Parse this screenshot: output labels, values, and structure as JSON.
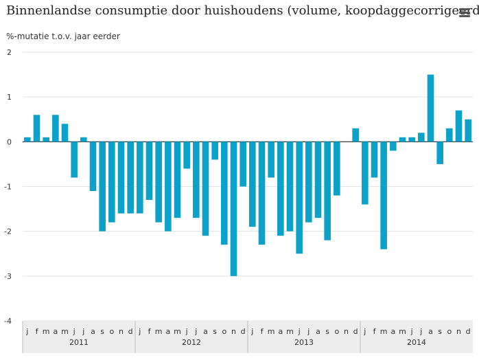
{
  "title": "Binnenlandse consumptie door huishoudens (volume, koopdaggecorrigeerd)",
  "menu": {
    "icon": "hamburger-menu-icon"
  },
  "chart_data": {
    "type": "bar",
    "title": "Binnenlandse consumptie door huishoudens (volume, koopdaggecorrigeerd)",
    "ylabel": "%-mutatie t.o.v. jaar eerder",
    "xlabel": "",
    "ylim": [
      -4,
      2
    ],
    "yticks": [
      -4,
      -3,
      -2,
      -1,
      0,
      1,
      2
    ],
    "grid": true,
    "legend": "none",
    "bar_color": "#0ca1c8",
    "month_labels": [
      "j",
      "f",
      "m",
      "a",
      "m",
      "j",
      "j",
      "a",
      "s",
      "o",
      "n",
      "d",
      "j",
      "f",
      "m",
      "a",
      "m",
      "j",
      "j",
      "a",
      "s",
      "o",
      "n",
      "d",
      "j",
      "f",
      "m",
      "a",
      "m",
      "j",
      "j",
      "a",
      "s",
      "o",
      "n",
      "d",
      "j",
      "f",
      "m",
      "a",
      "m",
      "j",
      "j",
      "a",
      "s",
      "o",
      "n",
      "d"
    ],
    "year_labels": [
      {
        "label": "2011",
        "start": 0
      },
      {
        "label": "2012",
        "start": 12
      },
      {
        "label": "2013",
        "start": 24
      },
      {
        "label": "2014",
        "start": 36
      }
    ],
    "values": [
      0.1,
      0.6,
      0.1,
      0.6,
      0.4,
      -0.8,
      0.1,
      -1.1,
      -2.0,
      -1.8,
      -1.6,
      -1.6,
      -1.6,
      -1.3,
      -1.8,
      -2.0,
      -1.7,
      -0.6,
      -1.7,
      -2.1,
      -0.4,
      -2.3,
      -3.0,
      -1.0,
      -1.9,
      -2.3,
      -0.8,
      -2.1,
      -2.0,
      -2.5,
      -1.8,
      -1.7,
      -2.2,
      -1.2,
      null,
      0.3,
      -1.4,
      -0.8,
      -2.4,
      -0.2,
      0.1,
      0.1,
      0.2,
      1.5,
      -0.5,
      0.3,
      0.7,
      0.5
    ]
  }
}
